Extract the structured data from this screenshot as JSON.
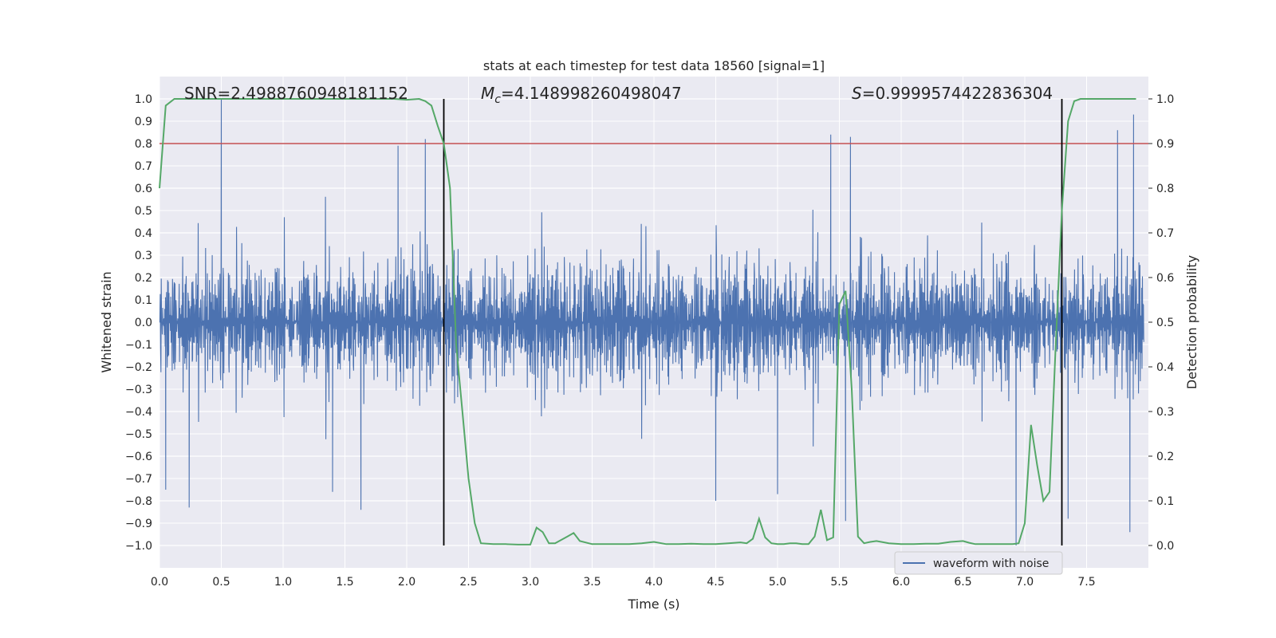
{
  "chart_data": {
    "type": "line",
    "title": "stats at each timestep for test data 18560 [signal=1]",
    "xlabel": "Time (s)",
    "ylabel": "Whitened strain",
    "y2label": "Detection probability",
    "xlim": [
      0.0,
      8.0
    ],
    "ylim": [
      -1.1,
      1.1
    ],
    "y2lim": [
      -0.05,
      1.05
    ],
    "xticks": [
      "0.0",
      "0.5",
      "1.0",
      "1.5",
      "2.0",
      "2.5",
      "3.0",
      "3.5",
      "4.0",
      "4.5",
      "5.0",
      "5.5",
      "6.0",
      "6.5",
      "7.0",
      "7.5"
    ],
    "yticks": [
      "1.0",
      "0.9",
      "0.8",
      "0.7",
      "0.6",
      "0.5",
      "0.4",
      "0.3",
      "0.2",
      "0.1",
      "0.0",
      "−0.1",
      "−0.2",
      "−0.3",
      "−0.4",
      "−0.5",
      "−0.6",
      "−0.7",
      "−0.8",
      "−0.9",
      "−1.0"
    ],
    "y2ticks": [
      "1.0",
      "0.9",
      "0.8",
      "0.7",
      "0.6",
      "0.5",
      "0.4",
      "0.3",
      "0.2",
      "0.1",
      "0.0"
    ],
    "grid": true,
    "legend": {
      "entries": [
        "waveform with noise"
      ],
      "placement": "lower-right"
    },
    "annotations": {
      "snr": "SNR=2.4988760948181152",
      "mc_symbol": "M",
      "mc_sub": "c",
      "mc_value": "=4.148998260498047",
      "s_symbol": "S",
      "s_value": "=0.9999574422836304"
    },
    "threshold": {
      "axis": "y2",
      "value": 0.9,
      "color": "#c44e52"
    },
    "vlines": {
      "x": [
        2.3,
        7.3
      ],
      "y2_range": [
        0.0,
        1.0
      ],
      "color": "#000000"
    },
    "series": [
      {
        "name": "waveform with noise",
        "color": "#4c72b0",
        "axis": "y",
        "typical_amplitude": 0.4,
        "spikes": [
          {
            "x": 0.5,
            "y": 1.0
          },
          {
            "x": 0.24,
            "y": -0.83
          },
          {
            "x": 1.63,
            "y": -0.84
          },
          {
            "x": 1.93,
            "y": 0.79
          },
          {
            "x": 2.15,
            "y": 0.82
          },
          {
            "x": 5.43,
            "y": 0.84
          },
          {
            "x": 5.59,
            "y": 0.83
          },
          {
            "x": 5.55,
            "y": -0.89
          },
          {
            "x": 6.93,
            "y": -1.0
          },
          {
            "x": 7.88,
            "y": 0.93
          },
          {
            "x": 7.85,
            "y": -0.94
          },
          {
            "x": 7.75,
            "y": 0.86
          },
          {
            "x": 4.5,
            "y": -0.8
          },
          {
            "x": 1.4,
            "y": -0.76
          },
          {
            "x": 7.35,
            "y": -0.88
          },
          {
            "x": 5.0,
            "y": -0.77
          },
          {
            "x": 0.05,
            "y": -0.75
          }
        ]
      },
      {
        "name": "Detection probability",
        "color": "#55a868",
        "axis": "y2",
        "x": [
          0.0,
          0.05,
          0.12,
          0.2,
          0.4,
          0.6,
          0.8,
          1.0,
          1.2,
          1.4,
          1.6,
          1.8,
          1.9,
          2.0,
          2.1,
          2.15,
          2.2,
          2.25,
          2.3,
          2.35,
          2.4,
          2.45,
          2.5,
          2.55,
          2.6,
          2.7,
          2.8,
          2.9,
          3.0,
          3.05,
          3.1,
          3.15,
          3.2,
          3.3,
          3.35,
          3.4,
          3.5,
          3.6,
          3.7,
          3.8,
          3.9,
          4.0,
          4.1,
          4.2,
          4.3,
          4.4,
          4.5,
          4.6,
          4.7,
          4.75,
          4.8,
          4.85,
          4.9,
          4.95,
          5.0,
          5.05,
          5.1,
          5.15,
          5.2,
          5.25,
          5.3,
          5.35,
          5.4,
          5.45,
          5.5,
          5.55,
          5.6,
          5.65,
          5.7,
          5.75,
          5.8,
          5.9,
          6.0,
          6.1,
          6.2,
          6.3,
          6.4,
          6.5,
          6.55,
          6.6,
          6.7,
          6.8,
          6.9,
          6.95,
          7.0,
          7.05,
          7.1,
          7.15,
          7.2,
          7.25,
          7.3,
          7.35,
          7.4,
          7.45,
          7.5,
          7.6,
          7.7,
          7.8,
          7.9
        ],
        "values": [
          0.8,
          0.985,
          1.0,
          1.0,
          1.0,
          1.0,
          1.0,
          1.0,
          1.0,
          1.0,
          1.0,
          1.0,
          1.0,
          0.998,
          1.0,
          0.995,
          0.985,
          0.94,
          0.9,
          0.8,
          0.45,
          0.3,
          0.15,
          0.05,
          0.005,
          0.003,
          0.003,
          0.002,
          0.002,
          0.04,
          0.03,
          0.005,
          0.005,
          0.02,
          0.028,
          0.01,
          0.003,
          0.003,
          0.003,
          0.003,
          0.005,
          0.008,
          0.003,
          0.003,
          0.004,
          0.003,
          0.003,
          0.005,
          0.007,
          0.005,
          0.015,
          0.06,
          0.018,
          0.005,
          0.003,
          0.003,
          0.005,
          0.005,
          0.003,
          0.003,
          0.02,
          0.08,
          0.012,
          0.018,
          0.54,
          0.57,
          0.35,
          0.02,
          0.005,
          0.008,
          0.01,
          0.005,
          0.003,
          0.003,
          0.004,
          0.004,
          0.008,
          0.01,
          0.006,
          0.003,
          0.003,
          0.003,
          0.003,
          0.005,
          0.05,
          0.27,
          0.18,
          0.1,
          0.12,
          0.45,
          0.75,
          0.95,
          0.995,
          1.0,
          1.0,
          1.0,
          1.0,
          1.0,
          1.0
        ]
      }
    ]
  }
}
